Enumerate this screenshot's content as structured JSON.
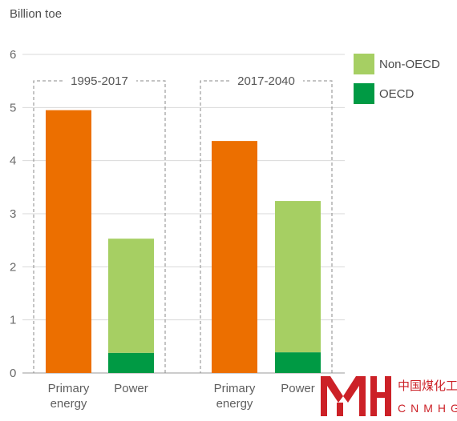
{
  "chart_data": {
    "type": "bar",
    "stacked": true,
    "ylabel": "Billion toe",
    "ylim": [
      0,
      6
    ],
    "yticks": [
      0,
      1,
      2,
      3,
      4,
      5,
      6
    ],
    "grid": true,
    "legend_position": "top-right",
    "groups": [
      {
        "label": "1995-2017",
        "categories": [
          "Primary energy",
          "Power"
        ],
        "bars": [
          {
            "category": "Primary energy",
            "segments": [
              {
                "series": "Total",
                "value": 4.95
              }
            ]
          },
          {
            "category": "Power",
            "segments": [
              {
                "series": "OECD",
                "value": 0.38
              },
              {
                "series": "Non-OECD",
                "value": 2.15
              }
            ]
          }
        ]
      },
      {
        "label": "2017-2040",
        "categories": [
          "Primary energy",
          "Power"
        ],
        "bars": [
          {
            "category": "Primary energy",
            "segments": [
              {
                "series": "Total",
                "value": 4.37
              }
            ]
          },
          {
            "category": "Power",
            "segments": [
              {
                "series": "OECD",
                "value": 0.39
              },
              {
                "series": "Non-OECD",
                "value": 2.85
              }
            ]
          }
        ]
      }
    ],
    "series": [
      {
        "name": "Non-OECD",
        "color": "#a6cf63"
      },
      {
        "name": "OECD",
        "color": "#009a44"
      }
    ],
    "total_color": "#ec6f00",
    "category_labels": [
      [
        "Primary",
        "energy"
      ],
      [
        "Power"
      ],
      [
        "Primary",
        "energy"
      ],
      [
        "Power"
      ]
    ]
  },
  "watermark": {
    "chinese": "中国煤化工",
    "latin": "CNMHG",
    "color": "#cc2127"
  }
}
